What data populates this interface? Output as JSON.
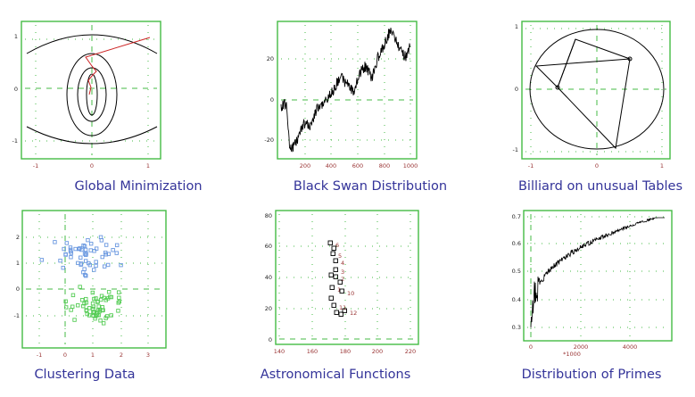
{
  "colors": {
    "frame": "#44bb44",
    "grid": "#44bb44",
    "curve": "#000000",
    "red": "#cc2222",
    "tick_y": "#222222",
    "tick_x": "#993333",
    "blue_points": "#6a98e0",
    "green_points": "#55cc55",
    "caption": "#333399"
  },
  "panels": [
    {
      "caption": "Global Minimization",
      "x_ticks": [
        "-1",
        "0",
        "1"
      ],
      "y_ticks": [
        "1",
        "0",
        "-1"
      ]
    },
    {
      "caption": "Black Swan Distribution",
      "x_ticks": [
        "200",
        "400",
        "600",
        "800",
        "1000"
      ],
      "y_ticks": [
        "20",
        "0",
        "-20"
      ]
    },
    {
      "caption": "Billiard on unusual Tables",
      "x_ticks": [
        "-1",
        "0",
        "1"
      ],
      "y_ticks": [
        "1",
        "0",
        "-1"
      ]
    },
    {
      "caption": "Clustering Data",
      "x_ticks": [
        "-1",
        "0",
        "1",
        "2",
        "3"
      ],
      "y_ticks": [
        "2",
        "1",
        "0",
        "-1"
      ]
    },
    {
      "caption": "Astronomical Functions",
      "x_ticks": [
        "140",
        "160",
        "180",
        "200",
        "220"
      ],
      "y_ticks": [
        "80",
        "60",
        "40",
        "20",
        "0"
      ],
      "point_labels": [
        "6",
        "5",
        "4",
        "3",
        "2",
        "1",
        "10",
        "11",
        "12"
      ]
    },
    {
      "caption": "Distribution of Primes",
      "x_ticks": [
        "0",
        "2000",
        "4000"
      ],
      "x_unit": "*1000",
      "y_ticks": [
        "0.7",
        "0.6",
        "0.5",
        "0.4",
        "0.3"
      ]
    }
  ]
}
